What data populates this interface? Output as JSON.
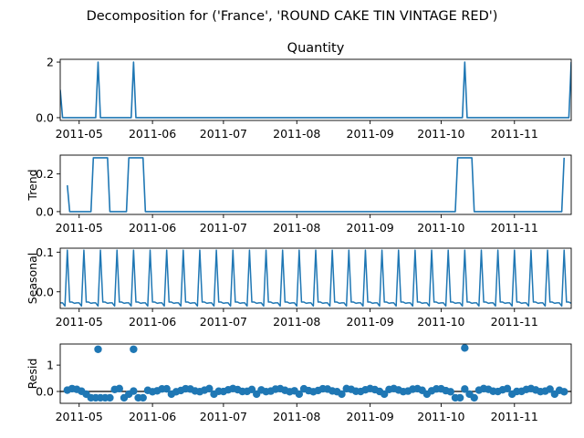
{
  "chart_data": {
    "type": "line",
    "suptitle": "Decomposition for ('France', 'ROUND CAKE TIN VINTAGE RED')",
    "line_color": "#1f77b4",
    "x_ticks": [
      "2011-05",
      "2011-06",
      "2011-07",
      "2011-08",
      "2011-09",
      "2011-10",
      "2011-11"
    ],
    "x_range": [
      "2011-04-23",
      "2011-11-25"
    ],
    "panels": [
      {
        "name": "Quantity",
        "title": "Quantity",
        "ylabel": "",
        "kind": "line",
        "ylim": [
          -0.1,
          2.1
        ],
        "yticks": [
          0,
          2
        ],
        "points": [
          [
            "2011-04-23",
            1.0
          ],
          [
            "2011-04-24",
            0
          ],
          [
            "2011-05-08",
            0
          ],
          [
            "2011-05-09",
            2
          ],
          [
            "2011-05-10",
            0
          ],
          [
            "2011-05-23",
            0
          ],
          [
            "2011-05-24",
            2
          ],
          [
            "2011-05-25",
            0
          ],
          [
            "2011-10-10",
            0
          ],
          [
            "2011-10-11",
            2
          ],
          [
            "2011-10-12",
            0
          ],
          [
            "2011-11-24",
            0
          ],
          [
            "2011-11-25",
            2
          ]
        ]
      },
      {
        "name": "Trend",
        "title": "",
        "ylabel": "Trend",
        "kind": "line",
        "ylim": [
          -0.015,
          0.3
        ],
        "yticks": [
          0.0,
          0.2
        ],
        "points": [
          [
            "2011-04-26",
            0.14
          ],
          [
            "2011-04-27",
            0
          ],
          [
            "2011-05-06",
            0
          ],
          [
            "2011-05-07",
            0.286
          ],
          [
            "2011-05-13",
            0.286
          ],
          [
            "2011-05-14",
            0
          ],
          [
            "2011-05-21",
            0
          ],
          [
            "2011-05-22",
            0.286
          ],
          [
            "2011-05-28",
            0.286
          ],
          [
            "2011-05-29",
            0
          ],
          [
            "2011-10-07",
            0
          ],
          [
            "2011-10-08",
            0.286
          ],
          [
            "2011-10-14",
            0.286
          ],
          [
            "2011-10-15",
            0
          ],
          [
            "2011-11-21",
            0
          ],
          [
            "2011-11-22",
            0.286
          ]
        ]
      },
      {
        "name": "Seasonal",
        "title": "",
        "ylabel": "Seasonal",
        "kind": "seasonal",
        "ylim": [
          -0.042,
          0.11
        ],
        "yticks": [
          0.0,
          0.1
        ],
        "start": "2011-04-23",
        "end": "2011-11-25",
        "pattern": [
          -0.028,
          -0.028,
          -0.036,
          0.105,
          -0.026,
          -0.026,
          -0.029
        ]
      },
      {
        "name": "Resid",
        "title": "",
        "ylabel": "Resid",
        "kind": "scatter",
        "ylim": [
          -0.45,
          1.8
        ],
        "yticks": [
          0,
          1
        ],
        "baseline": 0,
        "spikes": [
          [
            "2011-05-09",
            1.6
          ],
          [
            "2011-05-24",
            1.6
          ],
          [
            "2011-10-11",
            1.65
          ]
        ]
      }
    ]
  }
}
